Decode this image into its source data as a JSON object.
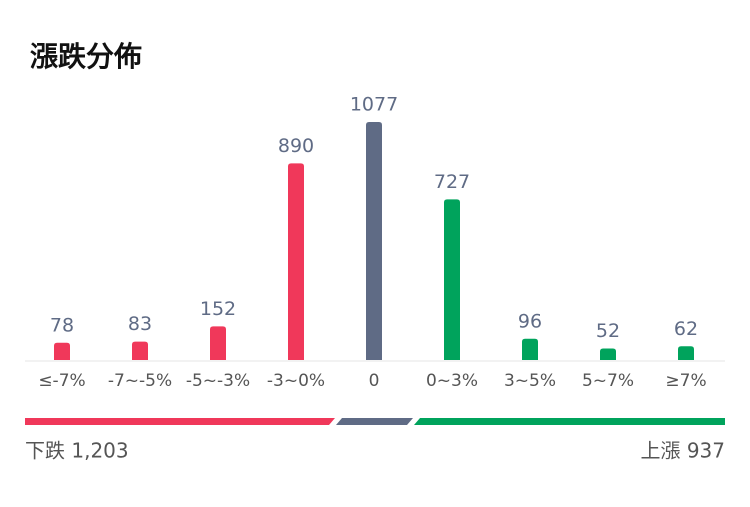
{
  "chart_data": {
    "type": "bar",
    "title": "漲跌分佈",
    "categories": [
      "≤-7%",
      "-7~-5%",
      "-5~-3%",
      "-3~0%",
      "0",
      "0~3%",
      "3~5%",
      "5~7%",
      "≥7%"
    ],
    "values": [
      78,
      83,
      152,
      890,
      1077,
      727,
      96,
      52,
      62
    ],
    "colors": [
      "#f0385a",
      "#f0385a",
      "#f0385a",
      "#f0385a",
      "#5f6b85",
      "#00a35c",
      "#00a35c",
      "#00a35c",
      "#00a35c"
    ],
    "summary_left": "下跌 1,203",
    "summary_right": "上漲 937"
  }
}
